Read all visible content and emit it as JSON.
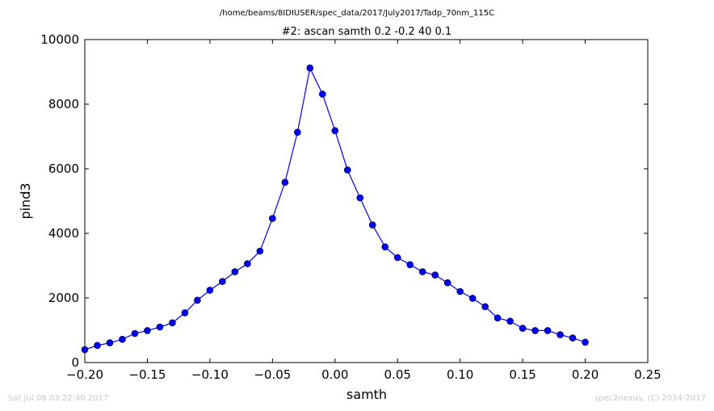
{
  "chart_data": {
    "type": "line",
    "title": "#2: ascan  samth 0.2 -0.2  40 0.1",
    "suptitle": "/home/beams/8IDIUSER/spec_data/2017/July2017/Tadp_70nm_115C",
    "xlabel": "samth",
    "ylabel": "pind3",
    "xlim": [
      -0.2,
      0.25
    ],
    "ylim": [
      0,
      10000
    ],
    "xticks": [
      -0.2,
      -0.15,
      -0.1,
      -0.05,
      0.0,
      0.05,
      0.1,
      0.15,
      0.2,
      0.25
    ],
    "xtick_labels": [
      "−0.20",
      "−0.15",
      "−0.10",
      "−0.05",
      "0.00",
      "0.05",
      "0.10",
      "0.15",
      "0.20",
      "0.25"
    ],
    "yticks": [
      0,
      2000,
      4000,
      6000,
      8000,
      10000
    ],
    "ytick_labels": [
      "0",
      "2000",
      "4000",
      "6000",
      "8000",
      "10000"
    ],
    "grid": false,
    "legend": "none",
    "series": [
      {
        "color": "#0000ff",
        "marker": "circle",
        "x": [
          -0.2,
          -0.19,
          -0.18,
          -0.17,
          -0.16,
          -0.15,
          -0.14,
          -0.13,
          -0.12,
          -0.11,
          -0.1,
          -0.09,
          -0.08,
          -0.07,
          -0.06,
          -0.05,
          -0.04,
          -0.03,
          -0.02,
          -0.01,
          0.0,
          0.01,
          0.02,
          0.03,
          0.04,
          0.05,
          0.06,
          0.07,
          0.08,
          0.09,
          0.1,
          0.11,
          0.12,
          0.13,
          0.14,
          0.15,
          0.16,
          0.17,
          0.18,
          0.19,
          0.2
        ],
        "y": [
          400,
          530,
          610,
          720,
          900,
          990,
          1100,
          1230,
          1540,
          1930,
          2240,
          2510,
          2810,
          3060,
          3450,
          4460,
          5580,
          7130,
          9120,
          8310,
          7180,
          5960,
          5100,
          4260,
          3580,
          3250,
          3030,
          2810,
          2710,
          2470,
          2200,
          1990,
          1730,
          1380,
          1280,
          1060,
          990,
          990,
          860,
          760,
          630
        ]
      }
    ]
  },
  "footer": {
    "timestamp": "Sat Jul 08 03:22:40 2017",
    "credit": "spec2nexus, (C) 2014-2017"
  }
}
